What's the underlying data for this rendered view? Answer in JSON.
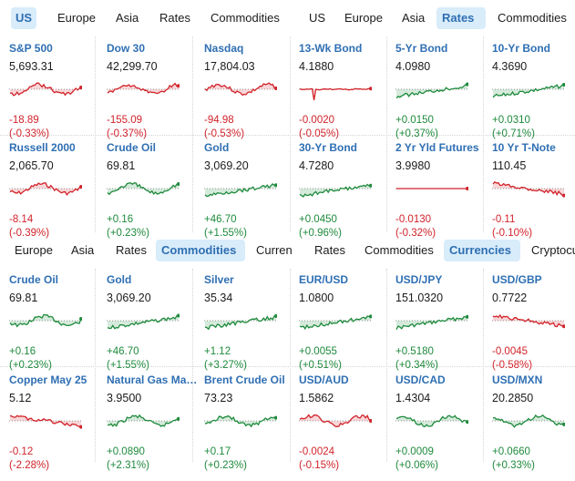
{
  "colors": {
    "up": "#1e8a3c",
    "down": "#d1232a",
    "accent": "#2f6fb3",
    "active_tab_bg": "#d8ecfa"
  },
  "tabs_top_left": [
    {
      "label": "US",
      "active": true
    },
    {
      "label": "Europe",
      "active": false
    },
    {
      "label": "Asia",
      "active": false
    },
    {
      "label": "Rates",
      "active": false
    },
    {
      "label": "Commodities",
      "active": false
    }
  ],
  "tabs_top_right": [
    {
      "label": "US",
      "active": false
    },
    {
      "label": "Europe",
      "active": false
    },
    {
      "label": "Asia",
      "active": false
    },
    {
      "label": "Rates",
      "active": true
    },
    {
      "label": "Commodities",
      "active": false
    }
  ],
  "tabs_bottom_left": [
    {
      "label": "Europe",
      "active": false
    },
    {
      "label": "Asia",
      "active": false
    },
    {
      "label": "Rates",
      "active": false
    },
    {
      "label": "Commodities",
      "active": true
    },
    {
      "label": "Currencies",
      "active": false
    }
  ],
  "tabs_bottom_right": [
    {
      "label": "Rates",
      "active": false
    },
    {
      "label": "Commodities",
      "active": false
    },
    {
      "label": "Currencies",
      "active": true
    },
    {
      "label": "Cryptocurrency",
      "active": false
    }
  ],
  "cards_row1": [
    {
      "name": "S&P 500",
      "price": "5,693.31",
      "change": "-18.89",
      "pct": "(-0.33%)",
      "dir": "down",
      "kind": "mixed"
    },
    {
      "name": "Dow 30",
      "price": "42,299.70",
      "change": "-155.09",
      "pct": "(-0.37%)",
      "dir": "down",
      "kind": "mixed"
    },
    {
      "name": "Nasdaq",
      "price": "17,804.03",
      "change": "-94.98",
      "pct": "(-0.53%)",
      "dir": "down",
      "kind": "mixed"
    },
    {
      "name": "13-Wk Bond",
      "price": "4.1880",
      "change": "-0.0020",
      "pct": "(-0.05%)",
      "dir": "down",
      "kind": "flat"
    },
    {
      "name": "5-Yr Bond",
      "price": "4.0980",
      "change": "+0.0150",
      "pct": "(+0.37%)",
      "dir": "up",
      "kind": "up"
    },
    {
      "name": "10-Yr Bond",
      "price": "4.3690",
      "change": "+0.0310",
      "pct": "(+0.71%)",
      "dir": "up",
      "kind": "up"
    }
  ],
  "cards_row2": [
    {
      "name": "Russell 2000",
      "price": "2,065.70",
      "change": "-8.14",
      "pct": "(-0.39%)",
      "dir": "down",
      "kind": "mixed"
    },
    {
      "name": "Crude Oil",
      "price": "69.81",
      "change": "+0.16",
      "pct": "(+0.23%)",
      "dir": "up",
      "kind": "mixed"
    },
    {
      "name": "Gold",
      "price": "3,069.20",
      "change": "+46.70",
      "pct": "(+1.55%)",
      "dir": "up",
      "kind": "up"
    },
    {
      "name": "30-Yr Bond",
      "price": "4.7280",
      "change": "+0.0450",
      "pct": "(+0.96%)",
      "dir": "up",
      "kind": "up"
    },
    {
      "name": "2 Yr Yld Futures",
      "price": "3.9980",
      "change": "-0.0130",
      "pct": "(-0.32%)",
      "dir": "down",
      "kind": "spike"
    },
    {
      "name": "10 Yr T-Note",
      "price": "110.45",
      "change": "-0.11",
      "pct": "(-0.10%)",
      "dir": "down",
      "kind": "down"
    }
  ],
  "cards_row3": [
    {
      "name": "Crude Oil",
      "price": "69.81",
      "change": "+0.16",
      "pct": "(+0.23%)",
      "dir": "up",
      "kind": "mixed"
    },
    {
      "name": "Gold",
      "price": "3,069.20",
      "change": "+46.70",
      "pct": "(+1.55%)",
      "dir": "up",
      "kind": "up"
    },
    {
      "name": "Silver",
      "price": "35.34",
      "change": "+1.12",
      "pct": "(+3.27%)",
      "dir": "up",
      "kind": "up"
    },
    {
      "name": "EUR/USD",
      "price": "1.0800",
      "change": "+0.0055",
      "pct": "(+0.51%)",
      "dir": "up",
      "kind": "up"
    },
    {
      "name": "USD/JPY",
      "price": "151.0320",
      "change": "+0.5180",
      "pct": "(+0.34%)",
      "dir": "up",
      "kind": "up"
    },
    {
      "name": "USD/GBP",
      "price": "0.7722",
      "change": "-0.0045",
      "pct": "(-0.58%)",
      "dir": "down",
      "kind": "down"
    }
  ],
  "cards_row4": [
    {
      "name": "Copper May 25",
      "price": "5.12",
      "change": "-0.12",
      "pct": "(-2.28%)",
      "dir": "down",
      "kind": "down"
    },
    {
      "name": "Natural Gas May 25",
      "price": "3.9500",
      "change": "+0.0890",
      "pct": "(+2.31%)",
      "dir": "up",
      "kind": "mixed"
    },
    {
      "name": "Brent Crude Oil",
      "price": "73.23",
      "change": "+0.17",
      "pct": "(+0.23%)",
      "dir": "up",
      "kind": "mixed"
    },
    {
      "name": "USD/AUD",
      "price": "1.5862",
      "change": "-0.0024",
      "pct": "(-0.15%)",
      "dir": "down",
      "kind": "mixed"
    },
    {
      "name": "USD/CAD",
      "price": "1.4304",
      "change": "+0.0009",
      "pct": "(+0.06%)",
      "dir": "up",
      "kind": "mixed"
    },
    {
      "name": "USD/MXN",
      "price": "20.2850",
      "change": "+0.0660",
      "pct": "(+0.33%)",
      "dir": "up",
      "kind": "mixed"
    }
  ]
}
